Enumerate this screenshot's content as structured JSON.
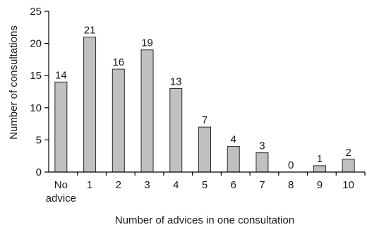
{
  "chart_data": {
    "type": "bar",
    "title": "",
    "xlabel": "Number of advices in one consultation",
    "ylabel": "Number of consultations",
    "ylim": [
      0,
      25
    ],
    "yticks": [
      0,
      5,
      10,
      15,
      20,
      25
    ],
    "grid": false,
    "legend": "none",
    "categories": [
      [
        "No",
        "advice"
      ],
      [
        "1"
      ],
      [
        "2"
      ],
      [
        "3"
      ],
      [
        "4"
      ],
      [
        "5"
      ],
      [
        "6"
      ],
      [
        "7"
      ],
      [
        "8"
      ],
      [
        "9"
      ],
      [
        "10"
      ]
    ],
    "values": [
      14,
      21,
      16,
      19,
      13,
      7,
      4,
      3,
      0,
      1,
      2
    ],
    "data_labels": [
      "14",
      "21",
      "16",
      "19",
      "13",
      "7",
      "4",
      "3",
      "0",
      "1",
      "2"
    ],
    "colors": {
      "bar_fill": "#c0c0c0",
      "bar_stroke": "#2b2b2b",
      "axis": "#000000"
    }
  }
}
